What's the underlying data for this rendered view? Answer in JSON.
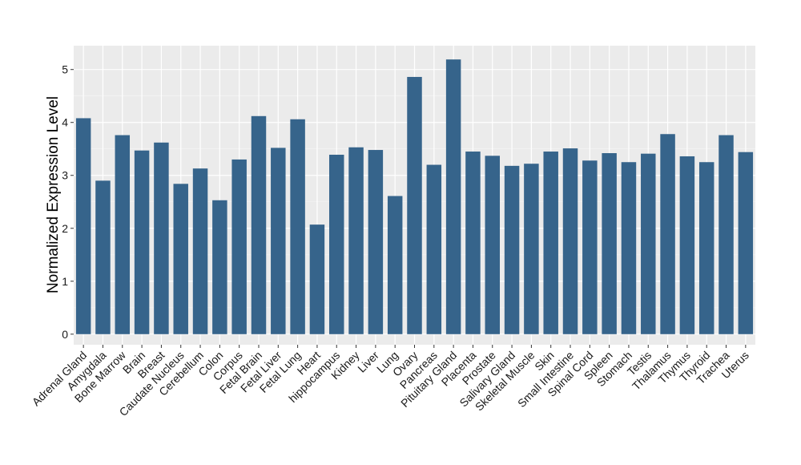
{
  "chart_data": {
    "type": "bar",
    "ylabel": "Normalized Expression Level",
    "xlabel": "",
    "ylim": [
      -0.2,
      5.45
    ],
    "yticks": [
      0,
      1,
      2,
      3,
      4,
      5
    ],
    "grid": true,
    "colors": {
      "bar": "#36648b",
      "panel": "#ebebeb",
      "grid_major": "#ffffff",
      "grid_minor": "#f5f5f5"
    },
    "categories": [
      "Adrenal Gland",
      "Amygdala",
      "Bone Marrow",
      "Brain",
      "Breast",
      "Caudate Nucleus",
      "Cerebellum",
      "Colon",
      "Corpus",
      "Fetal Brain",
      "Fetal Liver",
      "Fetal Lung",
      "Heart",
      "hippocampus",
      "Kidney",
      "Liver",
      "Lung",
      "Ovary",
      "Pancreas",
      "Pituitary Gland",
      "Placenta",
      "Prostate",
      "Salivary Gland",
      "Skeletal Muscle",
      "Skin",
      "Small Intestine",
      "Spinal Cord",
      "Spleen",
      "Stomach",
      "Testis",
      "Thalamus",
      "Thymus",
      "Thyroid",
      "Trachea",
      "Uterus"
    ],
    "values": [
      4.08,
      2.9,
      3.76,
      3.47,
      3.62,
      2.84,
      3.13,
      2.53,
      3.3,
      4.12,
      3.52,
      4.06,
      2.07,
      3.39,
      3.53,
      3.48,
      2.61,
      4.86,
      3.2,
      5.19,
      3.45,
      3.37,
      3.18,
      3.22,
      3.45,
      3.51,
      3.28,
      3.42,
      3.25,
      3.41,
      3.78,
      3.36,
      3.25,
      3.76,
      3.44
    ]
  }
}
